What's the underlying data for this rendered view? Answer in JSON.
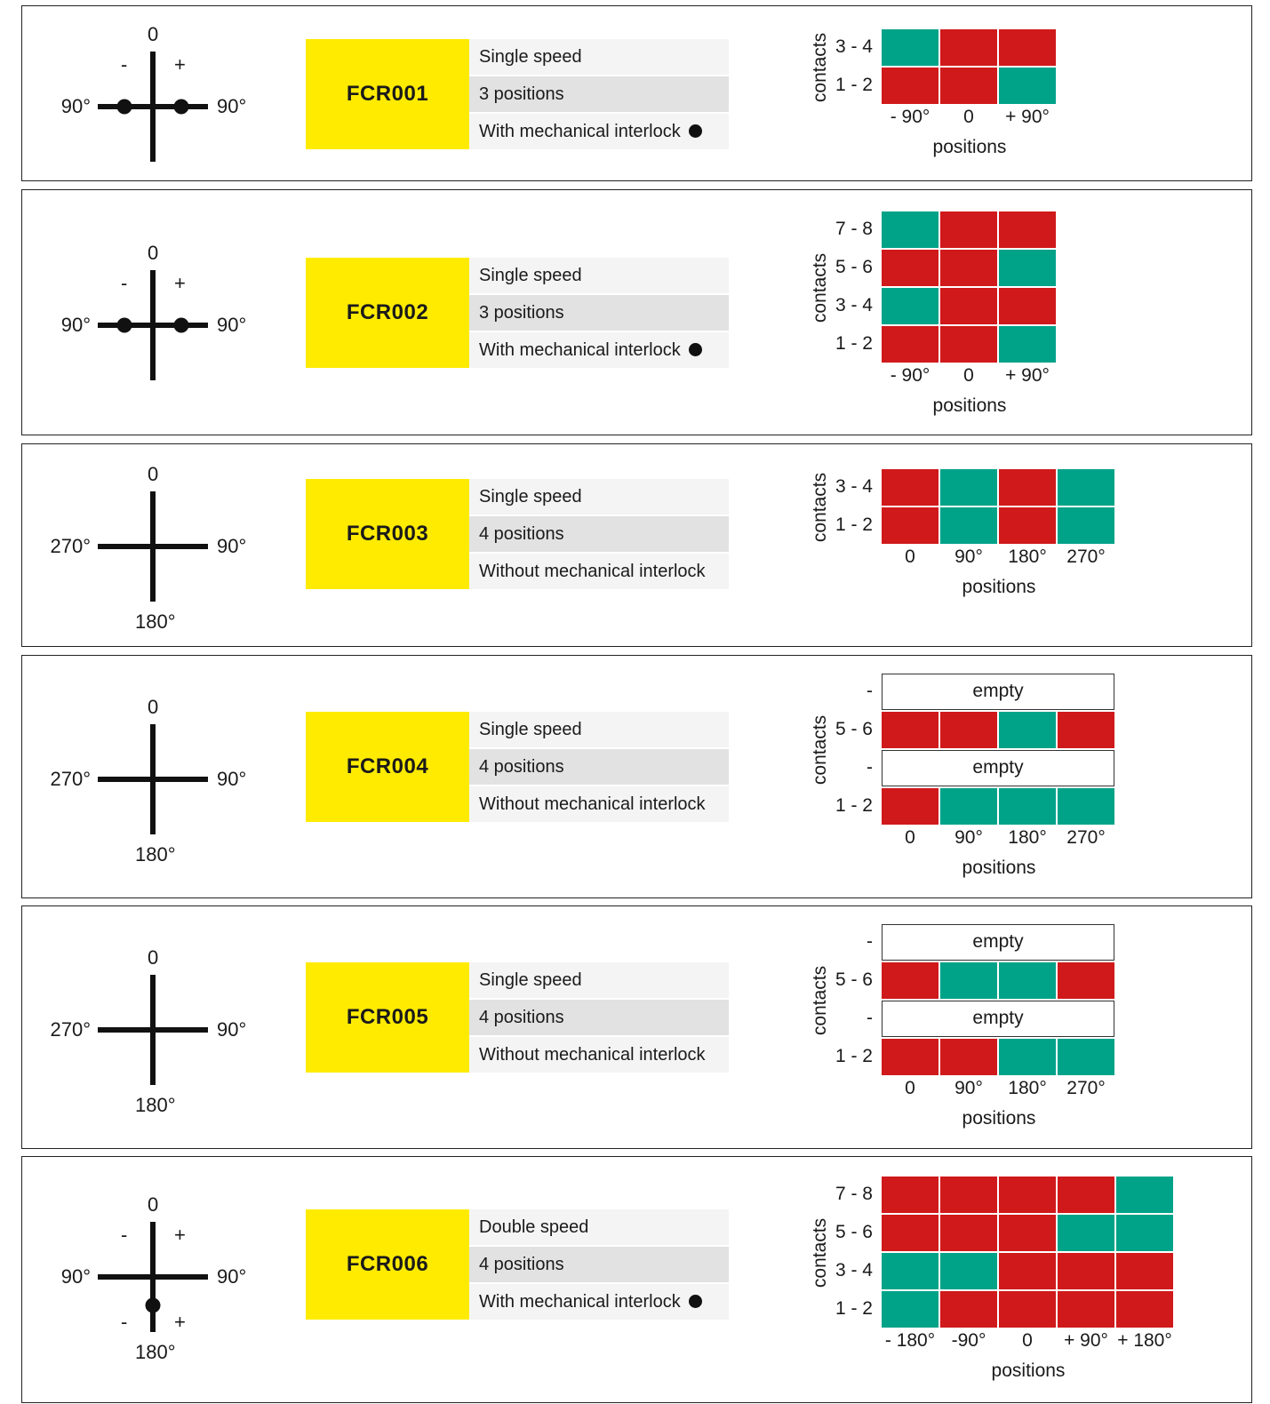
{
  "colors": {
    "closed": "#00a388",
    "open": "#d0191a",
    "code_bg": "#ffeb00"
  },
  "panels": [
    {
      "code": "FCR001",
      "props": [
        "Single speed",
        "3 positions",
        "With mechanical interlock"
      ],
      "interlock": true,
      "diagram": {
        "top": "0",
        "bottom": "",
        "left": "90°",
        "right": "90°",
        "minus": "-",
        "plus": "+",
        "bminus": "",
        "bplus": "",
        "dots": [
          "left",
          "right"
        ],
        "stem_bottom": true
      },
      "chart": {
        "ylabel": "contacts",
        "xlabel": "positions",
        "columns": [
          "- 90°",
          "0",
          "+ 90°"
        ],
        "rows": [
          {
            "label": "3 - 4",
            "states": [
              1,
              0,
              0
            ]
          },
          {
            "label": "1 - 2",
            "states": [
              0,
              0,
              1
            ]
          }
        ]
      }
    },
    {
      "code": "FCR002",
      "props": [
        "Single speed",
        "3 positions",
        "With mechanical interlock"
      ],
      "interlock": true,
      "diagram": {
        "top": "0",
        "bottom": "",
        "left": "90°",
        "right": "90°",
        "minus": "-",
        "plus": "+",
        "bminus": "",
        "bplus": "",
        "dots": [
          "left",
          "right"
        ],
        "stem_bottom": true
      },
      "chart": {
        "ylabel": "contacts",
        "xlabel": "positions",
        "columns": [
          "- 90°",
          "0",
          "+ 90°"
        ],
        "rows": [
          {
            "label": "7 - 8",
            "states": [
              1,
              0,
              0
            ]
          },
          {
            "label": "5 - 6",
            "states": [
              0,
              0,
              1
            ]
          },
          {
            "label": "3 - 4",
            "states": [
              1,
              0,
              0
            ]
          },
          {
            "label": "1 - 2",
            "states": [
              0,
              0,
              1
            ]
          }
        ]
      }
    },
    {
      "code": "FCR003",
      "props": [
        "Single speed",
        "4 positions",
        "Without mechanical interlock"
      ],
      "interlock": false,
      "diagram": {
        "top": "0",
        "bottom": "180°",
        "left": "270°",
        "right": "90°",
        "minus": "",
        "plus": "",
        "bminus": "",
        "bplus": "",
        "dots": [],
        "stem_bottom": true
      },
      "chart": {
        "ylabel": "contacts",
        "xlabel": "positions",
        "columns": [
          "0",
          "90°",
          "180°",
          "270°"
        ],
        "rows": [
          {
            "label": "3 - 4",
            "states": [
              0,
              1,
              0,
              1
            ]
          },
          {
            "label": "1 - 2",
            "states": [
              0,
              1,
              0,
              1
            ]
          }
        ]
      }
    },
    {
      "code": "FCR004",
      "props": [
        "Single speed",
        "4 positions",
        "Without mechanical interlock"
      ],
      "interlock": false,
      "diagram": {
        "top": "0",
        "bottom": "180°",
        "left": "270°",
        "right": "90°",
        "minus": "",
        "plus": "",
        "bminus": "",
        "bplus": "",
        "dots": [],
        "stem_bottom": true
      },
      "chart": {
        "ylabel": "contacts",
        "xlabel": "positions",
        "columns": [
          "0",
          "90°",
          "180°",
          "270°"
        ],
        "rows": [
          {
            "label": "-",
            "empty": "empty"
          },
          {
            "label": "5 - 6",
            "states": [
              0,
              0,
              1,
              0
            ]
          },
          {
            "label": "-",
            "empty": "empty"
          },
          {
            "label": "1 - 2",
            "states": [
              0,
              1,
              1,
              1
            ]
          }
        ]
      }
    },
    {
      "code": "FCR005",
      "props": [
        "Single speed",
        "4 positions",
        "Without mechanical interlock"
      ],
      "interlock": false,
      "diagram": {
        "top": "0",
        "bottom": "180°",
        "left": "270°",
        "right": "90°",
        "minus": "",
        "plus": "",
        "bminus": "",
        "bplus": "",
        "dots": [],
        "stem_bottom": true
      },
      "chart": {
        "ylabel": "contacts",
        "xlabel": "positions",
        "columns": [
          "0",
          "90°",
          "180°",
          "270°"
        ],
        "rows": [
          {
            "label": "-",
            "empty": "empty"
          },
          {
            "label": "5 - 6",
            "states": [
              0,
              1,
              1,
              0
            ]
          },
          {
            "label": "-",
            "empty": "empty"
          },
          {
            "label": "1 - 2",
            "states": [
              0,
              0,
              1,
              1
            ]
          }
        ]
      }
    },
    {
      "code": "FCR006",
      "props": [
        "Double speed",
        "4 positions",
        "With mechanical interlock"
      ],
      "interlock": true,
      "diagram": {
        "top": "0",
        "bottom": "180°",
        "left": "90°",
        "right": "90°",
        "minus": "-",
        "plus": "+",
        "bminus": "-",
        "bplus": "+",
        "dots": [
          "bottom"
        ],
        "stem_bottom": true
      },
      "chart": {
        "ylabel": "contacts",
        "xlabel": "positions",
        "columns": [
          "- 180°",
          "-90°",
          "0",
          "+ 90°",
          "+ 180°"
        ],
        "rows": [
          {
            "label": "7 - 8",
            "states": [
              0,
              0,
              0,
              0,
              1
            ]
          },
          {
            "label": "5 - 6",
            "states": [
              0,
              0,
              0,
              1,
              1
            ]
          },
          {
            "label": "3 - 4",
            "states": [
              1,
              1,
              0,
              0,
              0
            ]
          },
          {
            "label": "1 - 2",
            "states": [
              1,
              0,
              0,
              0,
              0
            ]
          }
        ]
      }
    }
  ]
}
